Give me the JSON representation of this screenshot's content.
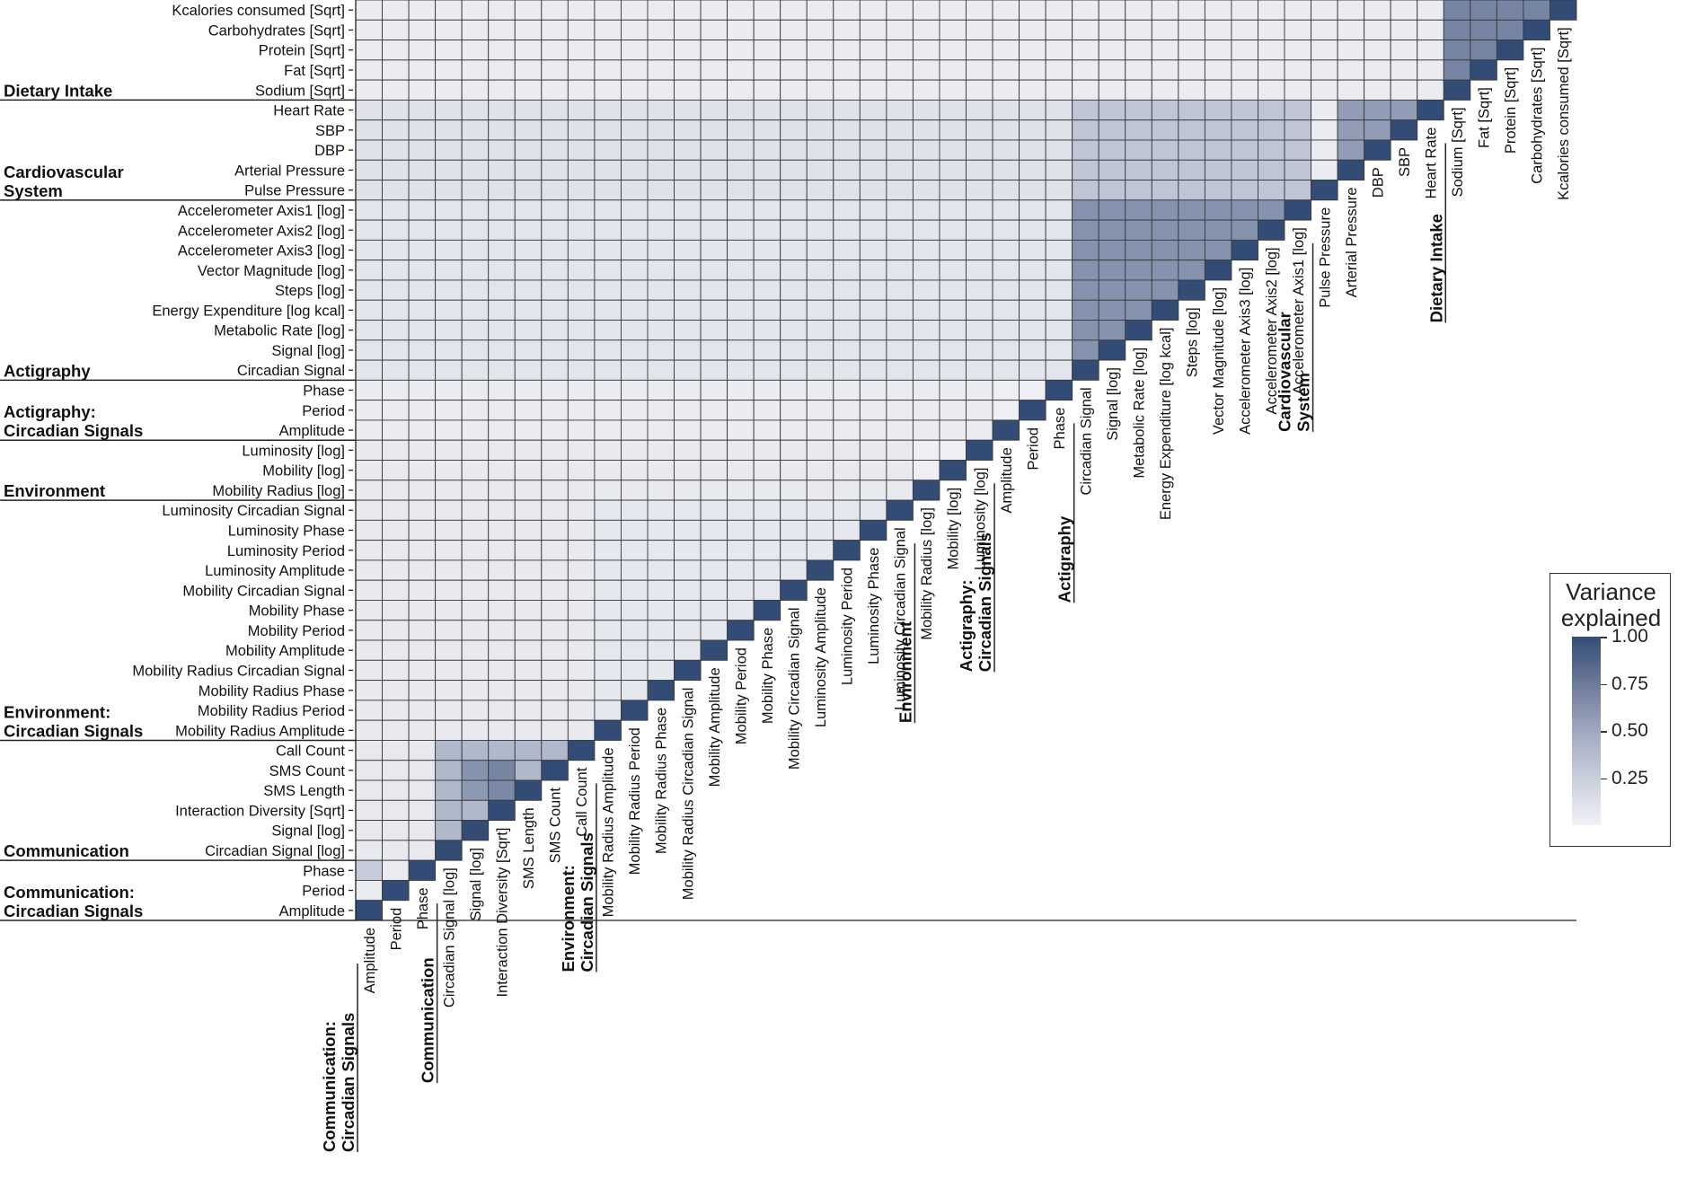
{
  "chart_data": {
    "type": "heatmap",
    "variables": [
      "Amplitude",
      "Period",
      "Phase",
      "Circadian Signal [log]",
      "Signal [log]",
      "Interaction Diversity [Sqrt]",
      "SMS Length",
      "SMS Count",
      "Call Count",
      "Mobility Radius Amplitude",
      "Mobility Radius Period",
      "Mobility Radius Phase",
      "Mobility Radius Circadian Signal",
      "Mobility  Amplitude",
      "Mobility  Period",
      "Mobility Phase",
      "Mobility Circadian Signal",
      "Luminosity Amplitude",
      "Luminosity Period",
      "Luminosity Phase",
      "Luminosity Circadian Signal",
      "Mobility Radius [log]",
      "Mobility [log]",
      "Luminosity [log]",
      "Amplitude",
      "Period",
      "Phase",
      "Circadian Signal",
      "Signal [log]",
      "Metabolic Rate [log]",
      "Energy Expenditure  [log kcal]",
      "Steps [log]",
      "Vector Magnitude [log]",
      "Accelerometer Axis3 [log]",
      "Accelerometer Axis2 [log]",
      "Accelerometer Axis1 [log]",
      "Pulse Pressure",
      "Arterial Pressure",
      "DBP",
      "SBP",
      "Heart Rate",
      "Sodium [Sqrt]",
      "Fat [Sqrt]",
      "Protein [Sqrt]",
      "Carbohydrates [Sqrt]",
      "Kcalories consumed [Sqrt]"
    ],
    "groups": [
      {
        "label": "Communication:\nCircadian Signals",
        "start": 0,
        "end": 2
      },
      {
        "label": "Communication",
        "start": 3,
        "end": 8
      },
      {
        "label": "Environment:\nCircadian Signals",
        "start": 9,
        "end": 20
      },
      {
        "label": "Environment",
        "start": 21,
        "end": 23
      },
      {
        "label": "Actigraphy:\nCircadian Signals",
        "start": 24,
        "end": 26
      },
      {
        "label": "Actigraphy",
        "start": 27,
        "end": 35
      },
      {
        "label": "Cardiovascular\nSystem",
        "start": 36,
        "end": 40
      },
      {
        "label": "Dietary Intake",
        "start": 41,
        "end": 45
      }
    ],
    "value_range": [
      0,
      1
    ],
    "colorscale": {
      "low": "#f1f2f6",
      "mid": "#a9b1c6",
      "high": "#324c76"
    },
    "legend": {
      "title": "Variance\nexplained",
      "ticks": [
        "1.00",
        "0.75",
        "0.50",
        "0.25"
      ],
      "placement": "right"
    },
    "cell_fill_by_block": [
      {
        "rows": [
          0,
          2
        ],
        "cols": [
          0,
          2
        ],
        "value": 0.05
      },
      {
        "rows": [
          3,
          8
        ],
        "cols": [
          0,
          2
        ],
        "value": 0.07
      },
      {
        "rows": [
          3,
          8
        ],
        "cols": [
          3,
          8
        ],
        "value": 0.45
      },
      {
        "rows": [
          9,
          20
        ],
        "cols": [
          0,
          8
        ],
        "value": 0.06
      },
      {
        "rows": [
          9,
          20
        ],
        "cols": [
          9,
          20
        ],
        "value": 0.08
      },
      {
        "rows": [
          21,
          23
        ],
        "cols": [
          0,
          20
        ],
        "value": 0.06
      },
      {
        "rows": [
          24,
          26
        ],
        "cols": [
          0,
          23
        ],
        "value": 0.05
      },
      {
        "rows": [
          27,
          35
        ],
        "cols": [
          0,
          26
        ],
        "value": 0.1
      },
      {
        "rows": [
          27,
          35
        ],
        "cols": [
          27,
          35
        ],
        "value": 0.65
      },
      {
        "rows": [
          36,
          40
        ],
        "cols": [
          0,
          26
        ],
        "value": 0.12
      },
      {
        "rows": [
          36,
          40
        ],
        "cols": [
          27,
          35
        ],
        "value": 0.35
      },
      {
        "rows": [
          36,
          40
        ],
        "cols": [
          36,
          40
        ],
        "value": 0.6
      },
      {
        "rows": [
          41,
          45
        ],
        "cols": [
          0,
          40
        ],
        "value": 0.05
      },
      {
        "rows": [
          41,
          45
        ],
        "cols": [
          41,
          45
        ],
        "value": 0.72
      }
    ],
    "cell_overrides": [
      {
        "row": 2,
        "col": 0,
        "value": 0.3
      },
      {
        "row": 7,
        "col": 4,
        "value": 0.65
      },
      {
        "row": 6,
        "col": 4,
        "value": 0.62
      },
      {
        "row": 6,
        "col": 5,
        "value": 0.7
      },
      {
        "row": 7,
        "col": 5,
        "value": 0.72
      },
      {
        "row": 36,
        "col": 37,
        "value": 0.05
      },
      {
        "row": 36,
        "col": 38,
        "value": 0.05
      },
      {
        "row": 36,
        "col": 39,
        "value": 0.05
      },
      {
        "row": 36,
        "col": 40,
        "value": 0.05
      }
    ],
    "diagonal_value": 1.0
  }
}
